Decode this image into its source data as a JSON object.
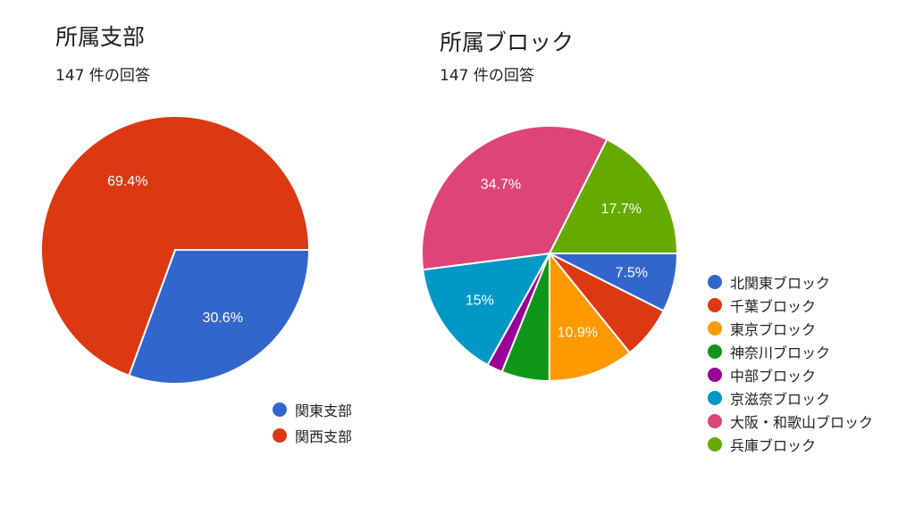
{
  "chart_data": [
    {
      "type": "pie",
      "title": "所属支部",
      "subtitle": "147 件の回答",
      "legend_position": "bottom-right",
      "categories": [
        "関東支部",
        "関西支部"
      ],
      "values": [
        30.6,
        69.4
      ],
      "value_labels": [
        "30.6%",
        "69.4%"
      ],
      "colors": [
        "#3366cc",
        "#dc3912"
      ]
    },
    {
      "type": "pie",
      "title": "所属ブロック",
      "subtitle": "147 件の回答",
      "legend_position": "right",
      "categories": [
        "北関東ブロック",
        "千葉ブロック",
        "東京ブロック",
        "神奈川ブロック",
        "中部ブロック",
        "京滋奈ブロック",
        "大阪・和歌山ブロック",
        "兵庫ブロック"
      ],
      "values": [
        7.5,
        6.8,
        10.9,
        6.1,
        2.0,
        15.0,
        34.7,
        17.7
      ],
      "value_labels": [
        "7.5%",
        "",
        "10.9%",
        "",
        "",
        "15%",
        "34.7%",
        "17.7%"
      ],
      "colors": [
        "#3366cc",
        "#dc3912",
        "#ff9900",
        "#109618",
        "#990099",
        "#0099c6",
        "#dd4477",
        "#66aa00"
      ]
    }
  ]
}
